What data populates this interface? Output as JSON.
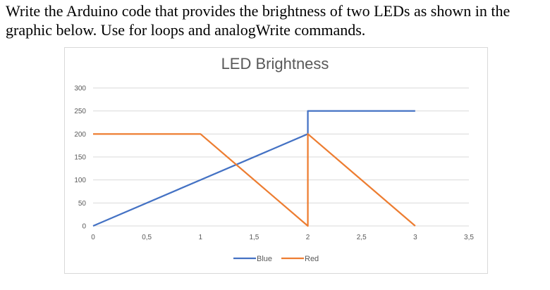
{
  "question": {
    "line1": "Write the Arduino code that provides the brightness of two LEDs as shown in the",
    "line2": "graphic below. Use for loops and analogWrite commands."
  },
  "chart_data": {
    "type": "line",
    "title": "LED Brightness",
    "xlabel": "",
    "ylabel": "",
    "xlim": [
      0,
      3.5
    ],
    "ylim": [
      0,
      300
    ],
    "x_ticks": [
      {
        "value": 0,
        "label": "0"
      },
      {
        "value": 0.5,
        "label": "0,5"
      },
      {
        "value": 1,
        "label": "1"
      },
      {
        "value": 1.5,
        "label": "1,5"
      },
      {
        "value": 2,
        "label": "2"
      },
      {
        "value": 2.5,
        "label": "2,5"
      },
      {
        "value": 3,
        "label": "3"
      },
      {
        "value": 3.5,
        "label": "3,5"
      }
    ],
    "y_ticks": [
      {
        "value": 0,
        "label": "0"
      },
      {
        "value": 50,
        "label": "50"
      },
      {
        "value": 100,
        "label": "100"
      },
      {
        "value": 150,
        "label": "150"
      },
      {
        "value": 200,
        "label": "200"
      },
      {
        "value": 250,
        "label": "250"
      },
      {
        "value": 300,
        "label": "300"
      }
    ],
    "grid": true,
    "legend_position": "bottom",
    "series": [
      {
        "name": "Blue",
        "color": "#4472c4",
        "points": [
          [
            0,
            0
          ],
          [
            2,
            200
          ],
          [
            2,
            250
          ],
          [
            3,
            250
          ]
        ]
      },
      {
        "name": "Red",
        "color": "#ed7d31",
        "points": [
          [
            0,
            200
          ],
          [
            1,
            200
          ],
          [
            2,
            0
          ],
          [
            2,
            200
          ],
          [
            3,
            0
          ]
        ]
      }
    ]
  }
}
